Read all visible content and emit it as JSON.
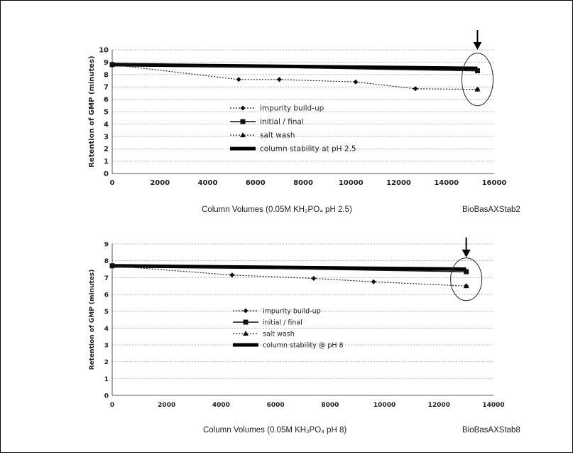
{
  "chart_data": [
    {
      "type": "line",
      "ylabel": "Retention of GMP (minutes)",
      "xlim": [
        0,
        16000
      ],
      "ylim": [
        0,
        10
      ],
      "x_ticks": [
        "0",
        "2000",
        "4000",
        "6000",
        "8000",
        "10000",
        "12000",
        "14000",
        "16000"
      ],
      "y_ticks": [
        "0",
        "1",
        "2",
        "3",
        "4",
        "5",
        "6",
        "7",
        "8",
        "9",
        "10"
      ],
      "grid": true,
      "legend": "center",
      "series": [
        {
          "name": "impurity build-up",
          "style": "dotted",
          "marker": "diamond",
          "points": [
            [
              0,
              8.8
            ],
            [
              5300,
              7.6
            ],
            [
              7000,
              7.6
            ],
            [
              10200,
              7.4
            ],
            [
              12700,
              6.85
            ],
            [
              15300,
              6.8
            ]
          ]
        },
        {
          "name": "initial / final",
          "style": "solid-thin",
          "marker": "square",
          "points": [
            [
              0,
              8.8
            ],
            [
              15300,
              8.3
            ]
          ]
        },
        {
          "name": "salt wash",
          "style": "dotted",
          "marker": "triangle",
          "points": [
            [
              15300,
              6.8
            ]
          ]
        },
        {
          "name": "column stability at pH 2.5",
          "style": "solid-thick",
          "marker": "none",
          "points": [
            [
              0,
              8.8
            ],
            [
              15300,
              8.5
            ]
          ]
        }
      ],
      "caption": "Column Volumes (0.05M KH₂PO₄ pH 2.5)",
      "code": "BioBasAXStab2",
      "annotations": {
        "circle_at": [
          15300,
          7.6
        ],
        "arrow_at_x": 15300
      }
    },
    {
      "type": "line",
      "ylabel": "Retention of GMP (minutes)",
      "xlim": [
        0,
        14000
      ],
      "ylim": [
        0,
        9
      ],
      "x_ticks": [
        "0",
        "2000",
        "4000",
        "6000",
        "8000",
        "10000",
        "12000",
        "14000"
      ],
      "y_ticks": [
        "0",
        "1",
        "2",
        "3",
        "4",
        "5",
        "6",
        "7",
        "8",
        "9"
      ],
      "grid": true,
      "legend": "center",
      "series": [
        {
          "name": "impurity build-up",
          "style": "dotted",
          "marker": "diamond",
          "points": [
            [
              0,
              7.7
            ],
            [
              4400,
              7.15
            ],
            [
              7400,
              6.95
            ],
            [
              9600,
              6.75
            ],
            [
              13000,
              6.5
            ]
          ]
        },
        {
          "name": "initial / final",
          "style": "solid-thin",
          "marker": "square",
          "points": [
            [
              0,
              7.7
            ],
            [
              13000,
              7.35
            ]
          ]
        },
        {
          "name": "salt wash",
          "style": "dotted",
          "marker": "triangle",
          "points": [
            [
              13000,
              6.5
            ]
          ]
        },
        {
          "name": "column stability @ pH 8",
          "style": "solid-thick",
          "marker": "none",
          "points": [
            [
              0,
              7.7
            ],
            [
              13000,
              7.5
            ]
          ]
        }
      ],
      "caption": "Column Volumes (0.05M KH₂PO₄ pH 8)",
      "code": "BioBasAXStab8",
      "annotations": {
        "circle_at": [
          13000,
          6.9
        ],
        "arrow_at_x": 13000
      }
    }
  ]
}
